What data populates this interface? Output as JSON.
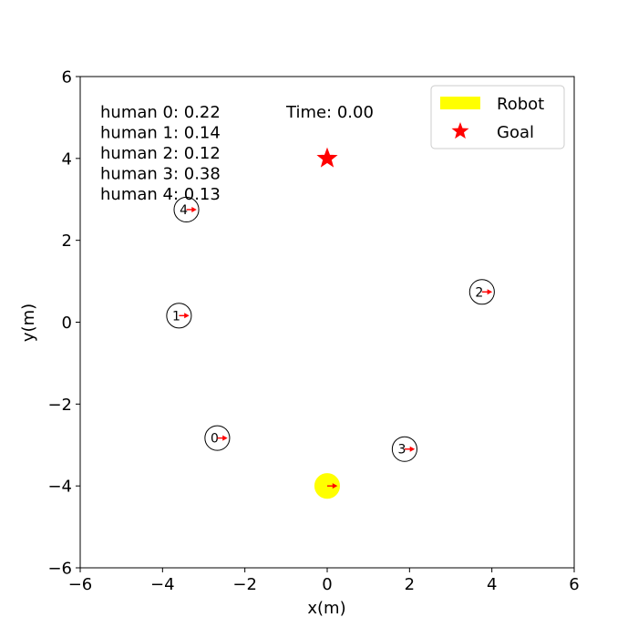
{
  "chart_data": {
    "type": "scatter",
    "title": "",
    "xlabel": "x(m)",
    "ylabel": "y(m)",
    "xlim": [
      -6,
      6
    ],
    "ylim": [
      -6,
      6
    ],
    "xticks": [
      -6,
      -4,
      -2,
      0,
      2,
      4,
      6
    ],
    "yticks": [
      -6,
      -4,
      -2,
      0,
      2,
      4,
      6
    ],
    "grid": false,
    "time_label": "Time: 0.00",
    "robot": {
      "x": 0,
      "y": -4,
      "radius": 0.3,
      "color": "#ffff00",
      "heading_dx": 0.25,
      "heading_dy": 0
    },
    "goal": {
      "x": 0,
      "y": 4,
      "color": "#ff0000"
    },
    "humans": [
      {
        "id": "0",
        "x": -2.67,
        "y": -2.83,
        "radius": 0.3,
        "heading_dx": 0.25,
        "heading_dy": 0
      },
      {
        "id": "1",
        "x": -3.6,
        "y": 0.16,
        "radius": 0.3,
        "heading_dx": 0.25,
        "heading_dy": 0
      },
      {
        "id": "2",
        "x": 3.76,
        "y": 0.74,
        "radius": 0.3,
        "heading_dx": 0.25,
        "heading_dy": 0
      },
      {
        "id": "3",
        "x": 1.88,
        "y": -3.1,
        "radius": 0.3,
        "heading_dx": 0.25,
        "heading_dy": 0
      },
      {
        "id": "4",
        "x": -3.42,
        "y": 2.75,
        "radius": 0.3,
        "heading_dx": 0.25,
        "heading_dy": 0
      }
    ],
    "human_values": [
      "human 0: 0.22",
      "human 1: 0.14",
      "human 2: 0.12",
      "human 3: 0.38",
      "human 4: 0.13"
    ],
    "legend": {
      "placement": "top-right",
      "entries": [
        {
          "label": "Robot",
          "marker": "patch",
          "color": "#ffff00"
        },
        {
          "label": "Goal",
          "marker": "star",
          "color": "#ff0000"
        }
      ]
    },
    "heading_color": "#ff0000",
    "human_edge_color": "#000000"
  }
}
